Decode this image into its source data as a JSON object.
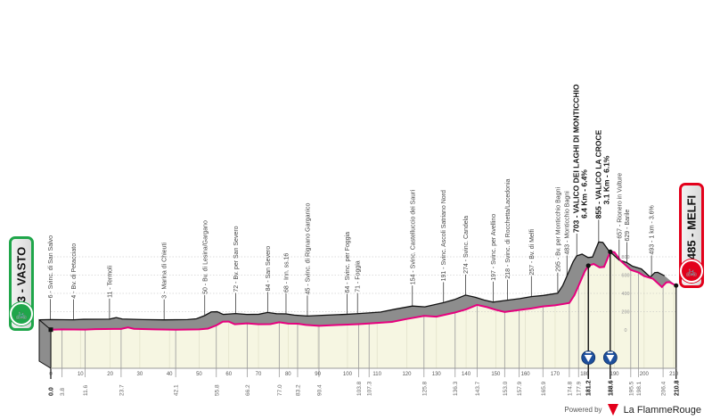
{
  "start": {
    "label": "3 - VASTO",
    "icon": "bicycle-icon",
    "color": "#1fa64a"
  },
  "finish": {
    "label": "485 - MELFI",
    "icon": "bicycle-icon",
    "color": "#e3001b"
  },
  "footer": {
    "powered": "Powered by",
    "brand": "La FlammeRouge"
  },
  "chart_data": {
    "type": "area",
    "title": "",
    "xlabel": "km",
    "ylabel": "m",
    "xlim": [
      0,
      210.8
    ],
    "ylim": [
      0,
      900
    ],
    "colors": {
      "profile": "#e6007e",
      "band": "#8d8d8d",
      "ground": "#f6f6e2"
    },
    "x_ticks": [
      "0",
      "10",
      "20",
      "30",
      "40",
      "50",
      "60",
      "70",
      "80",
      "90",
      "100",
      "110",
      "120",
      "130",
      "140",
      "150",
      "160",
      "170",
      "180",
      "190",
      "200",
      "210"
    ],
    "y_ticks": [
      "0",
      "200",
      "400",
      "600",
      "800"
    ],
    "profile": [
      [
        0,
        3
      ],
      [
        3.8,
        6
      ],
      [
        11.6,
        4
      ],
      [
        15,
        9
      ],
      [
        23.7,
        11
      ],
      [
        26,
        28
      ],
      [
        28,
        12
      ],
      [
        35,
        6
      ],
      [
        42.1,
        3
      ],
      [
        50,
        6
      ],
      [
        53,
        15
      ],
      [
        55.8,
        50
      ],
      [
        58,
        90
      ],
      [
        60,
        92
      ],
      [
        62,
        62
      ],
      [
        66.2,
        72
      ],
      [
        70,
        62
      ],
      [
        74,
        64
      ],
      [
        77,
        84
      ],
      [
        80,
        70
      ],
      [
        83.2,
        68
      ],
      [
        86,
        55
      ],
      [
        90.4,
        45
      ],
      [
        97,
        55
      ],
      [
        103.8,
        64
      ],
      [
        107.3,
        71
      ],
      [
        115,
        88
      ],
      [
        120,
        120
      ],
      [
        125.8,
        154
      ],
      [
        130,
        145
      ],
      [
        136.3,
        191
      ],
      [
        140,
        225
      ],
      [
        143.7,
        274
      ],
      [
        147,
        250
      ],
      [
        150,
        220
      ],
      [
        153,
        197
      ],
      [
        157.9,
        218
      ],
      [
        162,
        235
      ],
      [
        165.9,
        257
      ],
      [
        170,
        270
      ],
      [
        174.8,
        295
      ],
      [
        176.5,
        380
      ],
      [
        177.9,
        483
      ],
      [
        180,
        640
      ],
      [
        181.2,
        703
      ],
      [
        183,
        722
      ],
      [
        185,
        685
      ],
      [
        186.5,
        690
      ],
      [
        188.6,
        855
      ],
      [
        190,
        850
      ],
      [
        192,
        760
      ],
      [
        195.5,
        657
      ],
      [
        198.1,
        629
      ],
      [
        200,
        590
      ],
      [
        203,
        560
      ],
      [
        205,
        500
      ],
      [
        206,
        470
      ],
      [
        207.5,
        520
      ],
      [
        208.5,
        523
      ],
      [
        210.8,
        485
      ]
    ],
    "waypoints": [
      {
        "km": 3.8,
        "label": "6 - Svinc. di San Salvo"
      },
      {
        "km": 11.6,
        "label": "4 - Bv. di Petacciato"
      },
      {
        "km": 23.7,
        "label": "11 - Termoli"
      },
      {
        "km": 42.1,
        "label": "3 - Marina di Chieuti"
      },
      {
        "km": 55.8,
        "label": "50 - Bv. di Lesina/Gargano"
      },
      {
        "km": 66.2,
        "label": "72 - Bv. per San Severo"
      },
      {
        "km": 77.0,
        "label": "84 - San Severo"
      },
      {
        "km": 83.2,
        "label": "68 - Inn. ss.16"
      },
      {
        "km": 90.4,
        "label": "45 - Svinc. di Rignano Garganico"
      },
      {
        "km": 103.8,
        "label": "64 - Svinc. per Foggia"
      },
      {
        "km": 107.3,
        "label": "71 - Foggia"
      },
      {
        "km": 125.8,
        "label": "154 - Svinc. Castelluccio dei Sauri"
      },
      {
        "km": 136.3,
        "label": "191 - Svinc. Ascoli Satriano Nord"
      },
      {
        "km": 143.7,
        "label": "274 - Svinc. Candela"
      },
      {
        "km": 153.0,
        "label": "197 - Svinc. per Avellino"
      },
      {
        "km": 157.9,
        "label": "218 - Svinc. di Rocchetta/Lacedonia"
      },
      {
        "km": 165.9,
        "label": "257 - Bv. di Melfi"
      },
      {
        "km": 174.8,
        "label": "295 - Bv. per Monticchio Bagni"
      },
      {
        "km": 177.9,
        "label": "483 - Monticchio Bagni"
      },
      {
        "km": 181.2,
        "label": "703 - VALICO DEI LAGHI DI MONTICCHIO",
        "sub": "6.4 Km - 6.4%",
        "kom": true
      },
      {
        "km": 188.6,
        "label": "855 - VALICO LA CROCE",
        "sub": "3.1 Km - 6.1%",
        "kom": true
      },
      {
        "km": 195.5,
        "label": "657 - Rionero in Vulture"
      },
      {
        "km": 198.1,
        "label": "629 - Barile"
      },
      {
        "km": 206.4,
        "label": "493 - 1 km - 3.6%"
      }
    ],
    "distances": [
      {
        "km": 0,
        "label": "0.0",
        "key": true
      },
      {
        "km": 3.8,
        "label": "3.8"
      },
      {
        "km": 11.6,
        "label": "11.6"
      },
      {
        "km": 23.7,
        "label": "23.7"
      },
      {
        "km": 42.1,
        "label": "42.1"
      },
      {
        "km": 55.8,
        "label": "55.8"
      },
      {
        "km": 66.2,
        "label": "66.2"
      },
      {
        "km": 77.0,
        "label": "77.0"
      },
      {
        "km": 83.2,
        "label": "83.2"
      },
      {
        "km": 90.4,
        "label": "90.4"
      },
      {
        "km": 103.8,
        "label": "103.8"
      },
      {
        "km": 107.3,
        "label": "107.3"
      },
      {
        "km": 125.8,
        "label": "125.8"
      },
      {
        "km": 136.3,
        "label": "136.3"
      },
      {
        "km": 143.7,
        "label": "143.7"
      },
      {
        "km": 153.0,
        "label": "153.0"
      },
      {
        "km": 157.9,
        "label": "157.9"
      },
      {
        "km": 165.9,
        "label": "165.9"
      },
      {
        "km": 174.8,
        "label": "174.8"
      },
      {
        "km": 177.9,
        "label": "177.9"
      },
      {
        "km": 181.2,
        "label": "181.2",
        "key": true
      },
      {
        "km": 188.6,
        "label": "188.6",
        "key": true
      },
      {
        "km": 195.5,
        "label": "195.5"
      },
      {
        "km": 198.1,
        "label": "198.1"
      },
      {
        "km": 206.4,
        "label": "206.4"
      },
      {
        "km": 210.8,
        "label": "210.8",
        "key": true
      }
    ],
    "kom_markers": [
      181.2,
      188.6
    ]
  }
}
